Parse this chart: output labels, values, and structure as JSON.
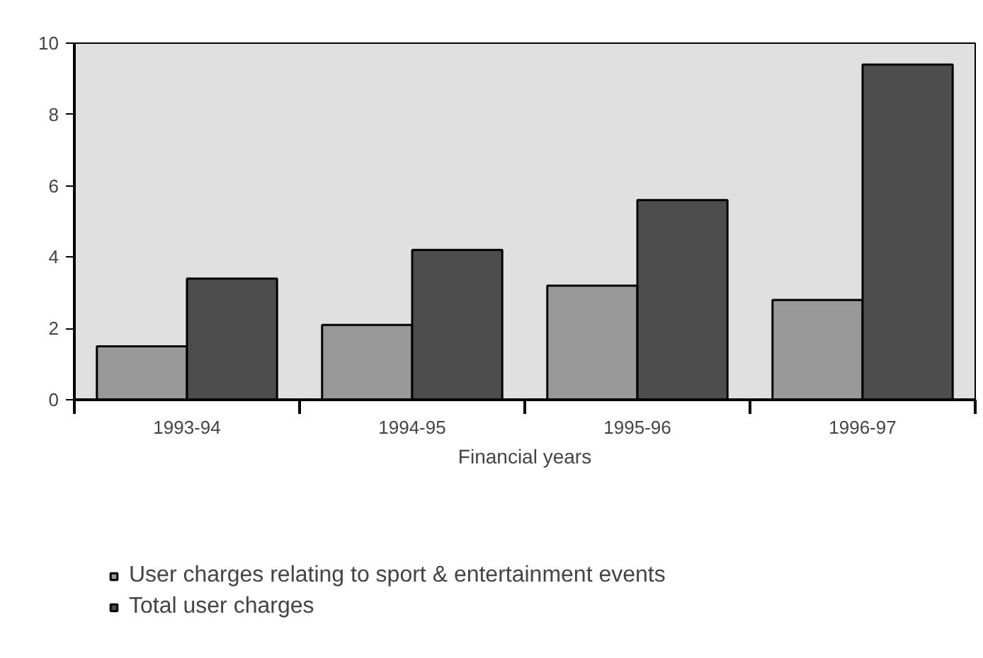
{
  "chart_data": {
    "type": "bar",
    "xlabel": "Financial years",
    "categories": [
      "1993-94",
      "1994-95",
      "1995-96",
      "1996-97"
    ],
    "series": [
      {
        "name": "User charges relating to sport & entertainment events",
        "color": "#999999",
        "values": [
          1.5,
          2.1,
          3.2,
          2.8
        ]
      },
      {
        "name": "Total user charges",
        "color": "#4d4d4d",
        "values": [
          3.4,
          4.2,
          5.6,
          9.4
        ]
      }
    ],
    "ylim": [
      0,
      10
    ],
    "yticks": [
      0,
      2,
      4,
      6,
      8,
      10
    ],
    "grid": false,
    "legend": "bottom"
  }
}
